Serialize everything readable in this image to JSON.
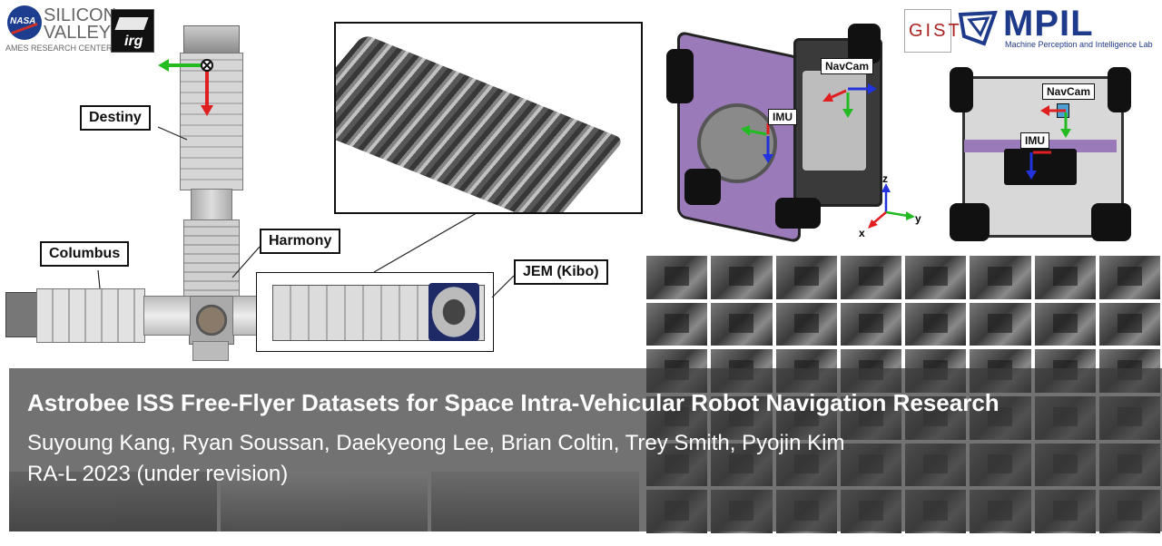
{
  "logos": {
    "nasa": "NASA",
    "silicon": "SILICON",
    "valley": "VALLEY",
    "ames": "AMES RESEARCH CENTER",
    "irg": "irg",
    "gist": "GIST",
    "mpil": "MPIL",
    "mpil_sub": "Machine Perception and Intelligence Lab"
  },
  "iss_labels": {
    "destiny": "Destiny",
    "harmony": "Harmony",
    "columbus": "Columbus",
    "jem": "JEM (Kibo)"
  },
  "robot_labels": {
    "navcam_left": "NavCam",
    "imu_left": "IMU",
    "navcam_right": "NavCam",
    "imu_right": "IMU"
  },
  "axes": {
    "z": "z",
    "x": "x",
    "y": "y"
  },
  "banner": {
    "title": "Astrobee ISS Free-Flyer Datasets for Space Intra-Vehicular Robot Navigation Research",
    "authors": "Suyoung Kang, Ryan Soussan, Daekyeong Lee, Brian Coltin, Trey Smith, Pyojin Kim",
    "venue": "RA-L 2023 (under revision)"
  },
  "colors": {
    "arrow_red": "#e02020",
    "arrow_green": "#22bb22",
    "arrow_blue": "#2233dd",
    "astrobee_purple": "#9a7ab8"
  }
}
